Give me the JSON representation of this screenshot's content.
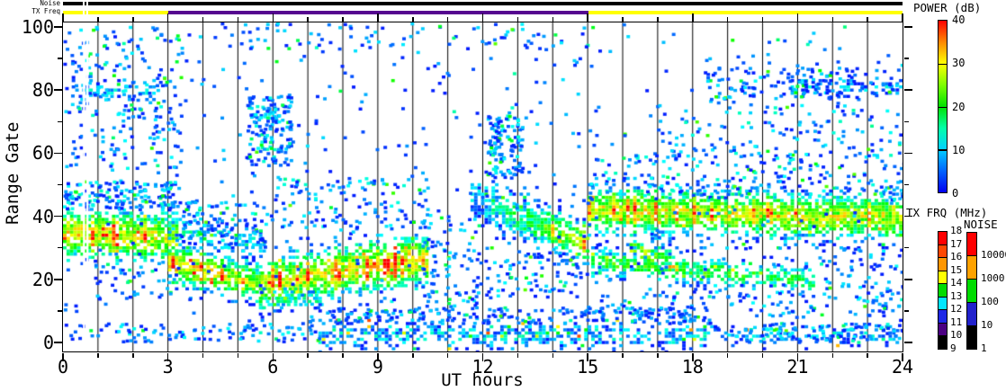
{
  "header": {
    "noise_row_label": "Noise",
    "txfreq_row_label": "TX Freq",
    "noise_segments": [
      {
        "t0": 0,
        "t1": 0.56,
        "color": "#000000"
      },
      {
        "t0": 0.62,
        "t1": 0.67,
        "color": "#000000"
      },
      {
        "t0": 0.73,
        "t1": 24,
        "color": "#000000"
      }
    ],
    "txfreq_segments": [
      {
        "t0": 0,
        "t1": 0.56,
        "color": "#ffff00"
      },
      {
        "t0": 0.62,
        "t1": 0.67,
        "color": "#ffff00"
      },
      {
        "t0": 0.73,
        "t1": 3.02,
        "color": "#ffff00"
      },
      {
        "t0": 3.02,
        "t1": 15.02,
        "color": "#55068f"
      },
      {
        "t0": 15.02,
        "t1": 24,
        "color": "#ffff00"
      }
    ]
  },
  "colorbars": {
    "power": {
      "title": "POWER (dB)",
      "min": 0,
      "max": 40,
      "tick_labels": [
        "40",
        "30",
        "20",
        "10",
        "0"
      ],
      "gradient": [
        "#ff0000",
        "#ff8800",
        "#ffff00",
        "#7dff00",
        "#00e100",
        "#00ffa8",
        "#00cfff",
        "#0064ff",
        "#0000f0"
      ]
    },
    "tx_frq": {
      "title": "TX FRQ (MHz)",
      "labels": [
        "18",
        "17",
        "16",
        "15",
        "14",
        "13",
        "12",
        "11",
        "10",
        "9"
      ],
      "block_colors": [
        "#ff0000",
        "#ff4800",
        "#ff9600",
        "#ffff00",
        "#00dc00",
        "#00e6ff",
        "#1e28e6",
        "#4b0082",
        "#000000"
      ]
    },
    "noise": {
      "title": "NOISE",
      "labels": [
        "10000",
        "1000",
        "100",
        "10",
        "1"
      ],
      "block_colors": [
        "#ff0000",
        "#ffa200",
        "#00dc00",
        "#2222cc",
        "#000000"
      ]
    }
  },
  "chart_data": {
    "type": "heatmap",
    "title": "",
    "xlabel": "UT hours",
    "ylabel": "Range Gate",
    "xlim": [
      0,
      24
    ],
    "ylim": [
      0,
      100
    ],
    "xtick_major": [
      0,
      3,
      6,
      9,
      12,
      15,
      18,
      21,
      24
    ],
    "xtick_minor_step": 1,
    "ytick_major": [
      0,
      20,
      40,
      60,
      80,
      100
    ],
    "ytick_minor_step": 10,
    "hour_gridlines": true,
    "colormap": "rainbow blue(0dB) to red(40dB)",
    "seed": 42,
    "data_gap_hours": [
      [
        0.57,
        0.63
      ],
      [
        0.67,
        0.73
      ]
    ],
    "bands": [
      {
        "name": "morning-band",
        "t0": 0,
        "t1": 3.25,
        "g0": 35,
        "g1": 33,
        "hw": 6.8,
        "den": 0.88,
        "p0": 29,
        "p1": 27,
        "streak": 0.15
      },
      {
        "name": "descending-band",
        "t0": 3.0,
        "t1": 5.65,
        "g0": 25,
        "g1": 18.5,
        "hw": 5.0,
        "den": 0.82,
        "p0": 32,
        "p1": 24,
        "streak": 0.12
      },
      {
        "name": "midday-band",
        "t0": 5.65,
        "t1": 10.35,
        "g0": 19,
        "g1": 26.5,
        "hw": 6.5,
        "den": 0.86,
        "p0": 28,
        "p1": 30,
        "streak": 0.22
      },
      {
        "name": "low-tail",
        "t0": 5.6,
        "t1": 7.3,
        "g0": 13,
        "g1": 14,
        "hw": 2.5,
        "den": 0.5,
        "p0": 15,
        "p1": 13
      },
      {
        "name": "remnant-band",
        "t0": 3.0,
        "t1": 5.7,
        "g0": 36,
        "g1": 31,
        "hw": 3.5,
        "den": 0.38,
        "p0": 11,
        "p1": 9
      },
      {
        "name": "noon-descending-band",
        "t0": 11.65,
        "t1": 15.0,
        "g0": 45.5,
        "g1": 31,
        "hw": 5.5,
        "den": 0.8,
        "p0": 7,
        "p1": 27,
        "streak": 0.1
      },
      {
        "name": "evening-main-band",
        "t0": 15.0,
        "t1": 24,
        "g0": 42,
        "g1": 39.5,
        "hw": 6.0,
        "den": 0.9,
        "p0": 28,
        "p1": 26,
        "streak": 0.18
      },
      {
        "name": "evening-dip",
        "t0": 16.2,
        "t1": 17.35,
        "g0": 30,
        "g1": 25.5,
        "hw": 3.5,
        "den": 0.72,
        "p0": 25,
        "p1": 20
      },
      {
        "name": "evening-secondary-band",
        "t0": 15.1,
        "t1": 21.5,
        "g0": 25.5,
        "g1": 19.5,
        "hw": 3.5,
        "den": 0.66,
        "p0": 20,
        "p1": 17
      },
      {
        "name": "bottom-strip-dense",
        "t0": 7.3,
        "t1": 18.5,
        "g0": 2.5,
        "g1": 2.5,
        "hw": 3.5,
        "den": 0.55,
        "p0": 8,
        "p1": 8,
        "spike": 0.035
      },
      {
        "name": "bottom-strip-right",
        "t0": 18.5,
        "t1": 24,
        "g0": 2,
        "g1": 2,
        "hw": 2.5,
        "den": 0.3,
        "p0": 8,
        "p1": 8,
        "spike": 0.02
      },
      {
        "name": "high-streak-right",
        "t0": 20.8,
        "t1": 23.95,
        "g0": 81.5,
        "g1": 80.5,
        "hw": 2.0,
        "den": 0.45,
        "p0": 7,
        "p1": 7
      },
      {
        "name": "high-streak-left",
        "t0": 0.15,
        "t1": 2.65,
        "g0": 80,
        "g1": 79,
        "hw": 2.5,
        "den": 0.4,
        "p0": 7,
        "p1": 7
      }
    ],
    "scatter": [
      {
        "t0": 0,
        "t1": 24,
        "g0": 5,
        "g1": 101,
        "n": 520,
        "pmax": 8
      },
      {
        "t0": 0,
        "t1": 3.4,
        "g0": 55,
        "g1": 92,
        "n": 170,
        "pmax": 10
      },
      {
        "t0": 0,
        "t1": 3.3,
        "g0": 42,
        "g1": 51,
        "n": 150,
        "pmax": 12
      },
      {
        "t0": 5.2,
        "t1": 6.5,
        "g0": 56,
        "g1": 78,
        "n": 150,
        "pmax": 11
      },
      {
        "t0": 12.1,
        "t1": 13.1,
        "g0": 52,
        "g1": 72,
        "n": 130,
        "pmax": 11
      },
      {
        "t0": 15,
        "t1": 24,
        "g0": 45,
        "g1": 60,
        "n": 190,
        "pmax": 12
      },
      {
        "t0": 17,
        "t1": 24,
        "g0": 58,
        "g1": 76,
        "n": 120,
        "pmax": 12
      },
      {
        "t0": 18.3,
        "t1": 24,
        "g0": 77,
        "g1": 87,
        "n": 140,
        "pmax": 9
      },
      {
        "t0": 0,
        "t1": 15,
        "g0": 93,
        "g1": 101,
        "n": 110,
        "pmax": 9
      },
      {
        "t0": 10.2,
        "t1": 11.8,
        "g0": 8,
        "g1": 40,
        "n": 80,
        "pmax": 9
      },
      {
        "t0": 6,
        "t1": 10.5,
        "g0": 36,
        "g1": 52,
        "n": 120,
        "pmax": 11
      },
      {
        "t0": 3.2,
        "t1": 5.8,
        "g0": 30,
        "g1": 45,
        "n": 100,
        "pmax": 10
      },
      {
        "t0": 11.7,
        "t1": 15,
        "g0": 14,
        "g1": 30,
        "n": 90,
        "pmax": 10
      },
      {
        "t0": 15.5,
        "t1": 21.5,
        "g0": 8,
        "g1": 16,
        "n": 80,
        "pmax": 10
      },
      {
        "t0": 0,
        "t1": 7.3,
        "g0": 0,
        "g1": 6,
        "n": 110,
        "pmax": 10
      },
      {
        "t0": 18.6,
        "t1": 24,
        "g0": 0,
        "g1": 6,
        "n": 120,
        "pmax": 11
      },
      {
        "t0": 21.5,
        "t1": 24,
        "g0": 8,
        "g1": 30,
        "n": 90,
        "pmax": 10
      },
      {
        "t0": 7,
        "t1": 18.5,
        "g0": 6,
        "g1": 11,
        "n": 200,
        "pmax": 8
      },
      {
        "t0": 0.8,
        "t1": 3.2,
        "g0": 14,
        "g1": 26,
        "n": 40,
        "pmax": 8
      }
    ]
  }
}
